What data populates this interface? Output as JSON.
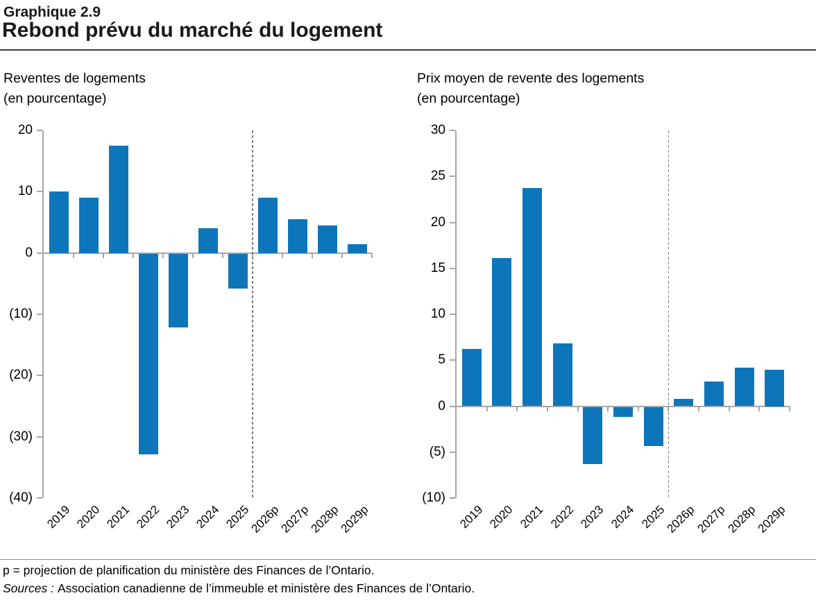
{
  "header": {
    "label": "Graphique 2.9",
    "title": "Rebond prévu du marché du logement"
  },
  "colors": {
    "bar": "#0d76ba",
    "axis": "#a6a6a6",
    "dashed": "#7f7f7f"
  },
  "chart_data": [
    {
      "type": "bar",
      "title": "Reventes de logements",
      "subtitle": "(en pourcentage)",
      "categories": [
        "2019",
        "2020",
        "2021",
        "2022",
        "2023",
        "2024",
        "2025",
        "2026p",
        "2027p",
        "2028p",
        "2029p"
      ],
      "values": [
        10.0,
        9.0,
        17.5,
        -32.8,
        -12.0,
        4.0,
        -5.7,
        9.0,
        5.5,
        4.5,
        1.4
      ],
      "ylim": [
        -40,
        20
      ],
      "yticks": [
        {
          "value": 20,
          "label": "20"
        },
        {
          "value": 10,
          "label": "10"
        },
        {
          "value": 0,
          "label": "0"
        },
        {
          "value": -10,
          "label": "(10)"
        },
        {
          "value": -20,
          "label": "(20)"
        },
        {
          "value": -30,
          "label": "(30)"
        },
        {
          "value": -40,
          "label": "(40)"
        }
      ],
      "forecast_start_index": 7,
      "grid": false,
      "legend": false
    },
    {
      "type": "bar",
      "title": "Prix moyen de revente des logements",
      "subtitle": "(en pourcentage)",
      "categories": [
        "2019",
        "2020",
        "2021",
        "2022",
        "2023",
        "2024",
        "2025",
        "2026p",
        "2027p",
        "2028p",
        "2029p"
      ],
      "values": [
        6.2,
        16.1,
        23.7,
        6.8,
        -6.2,
        -1.1,
        -4.3,
        0.8,
        2.7,
        4.2,
        4.0
      ],
      "ylim": [
        -10,
        30
      ],
      "yticks": [
        {
          "value": 30,
          "label": "30"
        },
        {
          "value": 25,
          "label": "25"
        },
        {
          "value": 20,
          "label": "20"
        },
        {
          "value": 15,
          "label": "15"
        },
        {
          "value": 10,
          "label": "10"
        },
        {
          "value": 5,
          "label": "5"
        },
        {
          "value": 0,
          "label": "0"
        },
        {
          "value": -5,
          "label": "(5)"
        },
        {
          "value": -10,
          "label": "(10)"
        }
      ],
      "forecast_start_index": 7,
      "grid": false,
      "legend": false
    }
  ],
  "footer": {
    "note": "p = projection de planification du ministère des Finances de l’Ontario.",
    "sources_label": "Sources :",
    "sources_text": "Association canadienne de l’immeuble et ministère des Finances de l’Ontario."
  }
}
